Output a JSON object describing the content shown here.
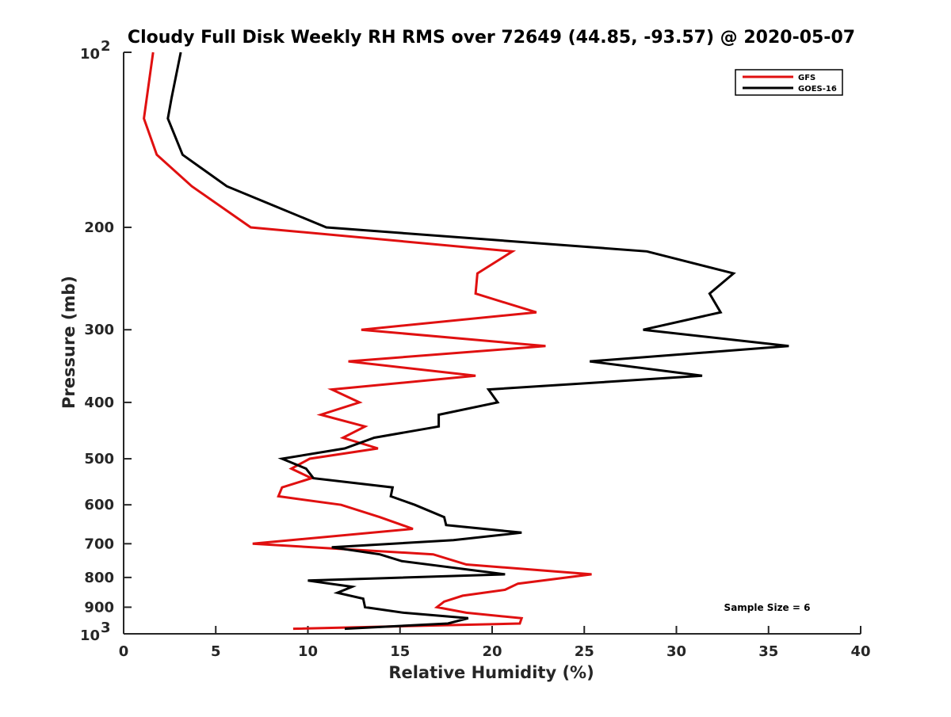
{
  "chart_data": {
    "type": "line",
    "title": "Cloudy Full Disk Weekly RH RMS over 72649 (44.85, -93.57) @ 2020-05-07",
    "xlabel": "Relative Humidity (%)",
    "ylabel": "Pressure (mb)",
    "xlim": [
      0,
      40
    ],
    "ylim": [
      100,
      1000
    ],
    "y_scale": "log",
    "y_reversed": true,
    "x_ticks": [
      0,
      5,
      10,
      15,
      20,
      25,
      30,
      35,
      40
    ],
    "y_ticks": [
      {
        "value": 100,
        "base": "10",
        "exp": "2"
      },
      {
        "value": 200,
        "label": "200"
      },
      {
        "value": 300,
        "label": "300"
      },
      {
        "value": 400,
        "label": "400"
      },
      {
        "value": 500,
        "label": "500"
      },
      {
        "value": 600,
        "label": "600"
      },
      {
        "value": 700,
        "label": "700"
      },
      {
        "value": 800,
        "label": "800"
      },
      {
        "value": 900,
        "label": "900"
      },
      {
        "value": 1000,
        "base": "10",
        "exp": "3"
      }
    ],
    "grid": false,
    "legend_position": "top-right",
    "annotation": "Sample Size = 6",
    "series": [
      {
        "name": "GFS",
        "color": "#e01010",
        "points": [
          [
            1.6,
            100
          ],
          [
            1.1,
            130
          ],
          [
            1.8,
            150
          ],
          [
            3.7,
            170
          ],
          [
            6.9,
            200
          ],
          [
            21.1,
            220
          ],
          [
            19.2,
            240
          ],
          [
            19.1,
            260
          ],
          [
            22.4,
            280
          ],
          [
            12.9,
            300
          ],
          [
            22.9,
            320
          ],
          [
            12.2,
            340
          ],
          [
            19.1,
            360
          ],
          [
            11.3,
            380
          ],
          [
            12.8,
            400
          ],
          [
            10.7,
            420
          ],
          [
            13.1,
            440
          ],
          [
            11.9,
            460
          ],
          [
            13.8,
            480
          ],
          [
            10.1,
            500
          ],
          [
            9.1,
            520
          ],
          [
            10.2,
            540
          ],
          [
            8.6,
            560
          ],
          [
            8.4,
            580
          ],
          [
            11.8,
            600
          ],
          [
            13.9,
            630
          ],
          [
            15.7,
            660
          ],
          [
            7.0,
            700
          ],
          [
            16.8,
            730
          ],
          [
            18.6,
            760
          ],
          [
            25.4,
            790
          ],
          [
            21.4,
            820
          ],
          [
            20.7,
            840
          ],
          [
            18.4,
            860
          ],
          [
            17.4,
            880
          ],
          [
            17.0,
            900
          ],
          [
            18.6,
            920
          ],
          [
            21.6,
            940
          ],
          [
            21.5,
            960
          ],
          [
            9.2,
            980
          ]
        ]
      },
      {
        "name": "GOES-16",
        "color": "#000000",
        "points": [
          [
            3.1,
            100
          ],
          [
            2.6,
            120
          ],
          [
            2.4,
            130
          ],
          [
            3.2,
            150
          ],
          [
            5.6,
            170
          ],
          [
            11.0,
            200
          ],
          [
            28.4,
            220
          ],
          [
            33.1,
            240
          ],
          [
            31.8,
            260
          ],
          [
            32.4,
            280
          ],
          [
            28.2,
            300
          ],
          [
            36.1,
            320
          ],
          [
            25.3,
            340
          ],
          [
            31.4,
            360
          ],
          [
            19.8,
            380
          ],
          [
            20.3,
            400
          ],
          [
            17.1,
            420
          ],
          [
            17.1,
            440
          ],
          [
            13.6,
            460
          ],
          [
            12.0,
            480
          ],
          [
            8.6,
            500
          ],
          [
            9.9,
            520
          ],
          [
            10.3,
            540
          ],
          [
            14.6,
            560
          ],
          [
            14.5,
            580
          ],
          [
            15.8,
            600
          ],
          [
            17.4,
            630
          ],
          [
            17.5,
            650
          ],
          [
            21.6,
            670
          ],
          [
            17.9,
            690
          ],
          [
            11.3,
            710
          ],
          [
            13.9,
            730
          ],
          [
            15.1,
            750
          ],
          [
            20.7,
            790
          ],
          [
            10.0,
            810
          ],
          [
            12.4,
            830
          ],
          [
            11.6,
            850
          ],
          [
            13.0,
            870
          ],
          [
            13.1,
            900
          ],
          [
            15.2,
            920
          ],
          [
            18.7,
            940
          ],
          [
            17.6,
            960
          ],
          [
            12.0,
            980
          ]
        ]
      }
    ]
  }
}
